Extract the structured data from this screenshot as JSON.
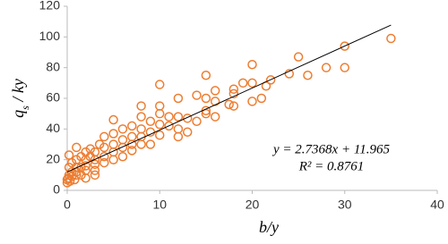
{
  "chart_data": {
    "type": "scatter",
    "xlabel": "b/y",
    "ylabel": [
      "q",
      "s",
      " / ky"
    ],
    "annotations": [
      "y = 2.7368x + 11.965",
      "R² = 0.8761"
    ],
    "color": "#ED7D31",
    "trendline": {
      "slope": 2.7368,
      "intercept": 11.965,
      "x_range": [
        0,
        35
      ],
      "color": "#000000"
    },
    "xlim": [
      0,
      40
    ],
    "xticks": [
      0,
      10,
      20,
      30,
      40
    ],
    "ylim": [
      0,
      120
    ],
    "yticks": [
      0,
      20,
      40,
      60,
      80,
      100,
      120
    ],
    "grid": false,
    "x": [
      35,
      30,
      30,
      28,
      26,
      25,
      24,
      22,
      21.5,
      21,
      20,
      20,
      18,
      18,
      17.5,
      16,
      16,
      15,
      15,
      15,
      15,
      14,
      13,
      12,
      12,
      11,
      12,
      10,
      10,
      10,
      10,
      10,
      9,
      9,
      8,
      8,
      8,
      8,
      7,
      7,
      7,
      6,
      6,
      6,
      5,
      5,
      5,
      5,
      4,
      4,
      4,
      3.5,
      3,
      3,
      3,
      2.5,
      2.5,
      2,
      2,
      2,
      2,
      1.5,
      1.5,
      1,
      1,
      1,
      1,
      1,
      0.5,
      0.5,
      0.5,
      0.2,
      0.2,
      0.2,
      0.1,
      0,
      0,
      0.3,
      11,
      13,
      14,
      12,
      9,
      6,
      4,
      3,
      5,
      7,
      16,
      18,
      20,
      19,
      8,
      1.5,
      2,
      3,
      0.8
    ],
    "y": [
      99,
      94,
      80,
      80,
      75,
      87,
      76,
      72,
      68,
      60,
      82,
      70,
      66,
      63,
      56,
      65,
      58,
      75,
      60,
      52,
      50,
      62,
      47,
      60,
      48,
      48,
      40,
      69,
      55,
      50,
      43,
      36,
      45,
      38,
      55,
      48,
      40,
      35,
      42,
      35,
      30,
      40,
      33,
      28,
      46,
      37,
      30,
      25,
      35,
      28,
      22,
      30,
      25,
      20,
      17,
      27,
      22,
      25,
      20,
      16,
      13,
      22,
      15,
      28,
      20,
      15,
      12,
      10,
      18,
      12,
      9,
      23,
      15,
      10,
      8,
      5,
      7,
      6,
      42,
      38,
      45,
      35,
      30,
      22,
      18,
      13,
      20,
      26,
      48,
      55,
      58,
      70,
      30,
      10,
      8,
      10,
      7
    ]
  }
}
